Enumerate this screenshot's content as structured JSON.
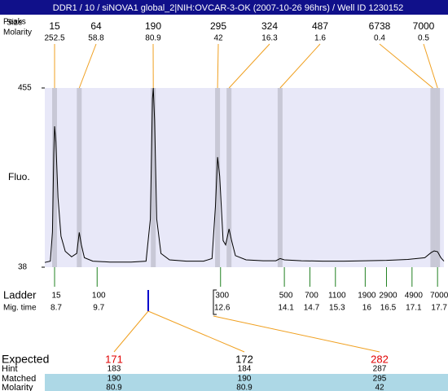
{
  "title": "DDR1 / 10 / siNOVA1 global_2|NIH:OVCAR-3-OK (2007-10-26 96hrs) / Well ID 1230152",
  "peaks_header": "Peaks",
  "size_header": "Size",
  "molarity_header": "Molarity",
  "chart_data": {
    "type": "line",
    "y_label": "Fluo.",
    "color": "#000000",
    "xlim": [
      8.47,
      17.85
    ],
    "ylim": [
      38,
      455
    ],
    "yticks": [
      38,
      455
    ],
    "x": [
      8.47,
      8.6,
      8.65,
      8.68,
      8.7,
      8.73,
      8.78,
      8.85,
      8.95,
      9.1,
      9.22,
      9.28,
      9.33,
      9.4,
      9.6,
      10.0,
      10.5,
      10.85,
      10.95,
      11.0,
      11.02,
      11.05,
      11.1,
      11.2,
      11.4,
      11.8,
      12.2,
      12.4,
      12.48,
      12.53,
      12.58,
      12.66,
      12.72,
      12.8,
      12.86,
      12.95,
      13.2,
      13.6,
      13.9,
      14.0,
      14.1,
      14.5,
      15.0,
      15.5,
      16.0,
      16.5,
      17.0,
      17.4,
      17.55,
      17.62,
      17.7,
      17.78,
      17.85
    ],
    "values": [
      49,
      52,
      120,
      300,
      366,
      330,
      200,
      110,
      75,
      62,
      70,
      119,
      90,
      60,
      52,
      50,
      50,
      52,
      150,
      430,
      455,
      380,
      150,
      70,
      55,
      52,
      52,
      58,
      180,
      294,
      250,
      100,
      90,
      127,
      100,
      65,
      55,
      53,
      53,
      58,
      55,
      53,
      52,
      52,
      53,
      54,
      56,
      60,
      72,
      76,
      74,
      60,
      52
    ],
    "peaks": {
      "migration_times": [
        8.7,
        9.28,
        11.02,
        12.53,
        12.8,
        14.0,
        17.59,
        17.7
      ],
      "sizes": [
        15,
        64,
        190,
        295,
        324,
        487,
        6738,
        7000
      ],
      "molarities": [
        252.5,
        58.8,
        80.9,
        42,
        16.3,
        1.6,
        0.4,
        0.5
      ]
    },
    "ladder": {
      "label": "Ladder",
      "time_label": "Mig. time",
      "sizes": [
        15,
        100,
        300,
        500,
        700,
        1100,
        1900,
        2900,
        4900,
        7000
      ],
      "migration_times": [
        8.7,
        9.7,
        12.6,
        14.1,
        14.7,
        15.3,
        16,
        16.5,
        17.1,
        17.7
      ]
    }
  },
  "expected_table": {
    "labels": [
      "Expected",
      "Hint",
      "Matched",
      "Molarity"
    ],
    "rows": [
      [
        171,
        172,
        282
      ],
      [
        183,
        184,
        287
      ],
      [
        190,
        190,
        295
      ],
      [
        80.9,
        80.9,
        42
      ]
    ]
  }
}
